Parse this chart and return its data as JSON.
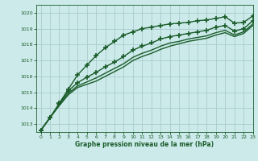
{
  "title": "Graphe pression niveau de la mer (hPa)",
  "bg_color": "#cceaea",
  "grid_color": "#aacccc",
  "line_color": "#1a5c2a",
  "xlim": [
    -0.5,
    23
  ],
  "ylim": [
    1012.5,
    1020.5
  ],
  "yticks": [
    1013,
    1014,
    1015,
    1016,
    1017,
    1018,
    1019,
    1020
  ],
  "xticks": [
    0,
    1,
    2,
    3,
    4,
    5,
    6,
    7,
    8,
    9,
    10,
    11,
    12,
    13,
    14,
    15,
    16,
    17,
    18,
    19,
    20,
    21,
    22,
    23
  ],
  "series": [
    {
      "y": [
        1012.6,
        1013.4,
        1014.3,
        1015.2,
        1016.1,
        1016.7,
        1017.3,
        1017.8,
        1018.2,
        1018.6,
        1018.8,
        1019.0,
        1019.1,
        1019.2,
        1019.3,
        1019.35,
        1019.4,
        1019.5,
        1019.55,
        1019.65,
        1019.75,
        1019.35,
        1019.4,
        1019.8
      ],
      "marker": "+",
      "ms": 4.5,
      "lw": 1.0,
      "ls": "-",
      "mew": 1.2
    },
    {
      "y": [
        1012.6,
        1013.4,
        1014.25,
        1015.1,
        1015.6,
        1015.95,
        1016.25,
        1016.6,
        1016.9,
        1017.25,
        1017.65,
        1017.9,
        1018.1,
        1018.35,
        1018.5,
        1018.6,
        1018.7,
        1018.8,
        1018.9,
        1019.1,
        1019.2,
        1018.85,
        1019.0,
        1019.5
      ],
      "marker": "+",
      "ms": 4.5,
      "lw": 1.0,
      "ls": "-",
      "mew": 1.2
    },
    {
      "y": [
        1012.6,
        1013.4,
        1014.2,
        1014.95,
        1015.4,
        1015.65,
        1015.9,
        1016.2,
        1016.5,
        1016.8,
        1017.2,
        1017.45,
        1017.65,
        1017.9,
        1018.1,
        1018.2,
        1018.35,
        1018.45,
        1018.55,
        1018.75,
        1018.9,
        1018.6,
        1018.8,
        1019.3
      ],
      "marker": null,
      "ms": 0,
      "lw": 1.0,
      "ls": "-",
      "mew": 0
    },
    {
      "y": [
        1012.6,
        1013.4,
        1014.15,
        1014.85,
        1015.3,
        1015.5,
        1015.7,
        1016.0,
        1016.3,
        1016.6,
        1017.0,
        1017.25,
        1017.45,
        1017.7,
        1017.9,
        1018.05,
        1018.2,
        1018.3,
        1018.4,
        1018.6,
        1018.75,
        1018.5,
        1018.7,
        1019.2
      ],
      "marker": null,
      "ms": 0,
      "lw": 1.0,
      "ls": "-",
      "mew": 0
    }
  ]
}
